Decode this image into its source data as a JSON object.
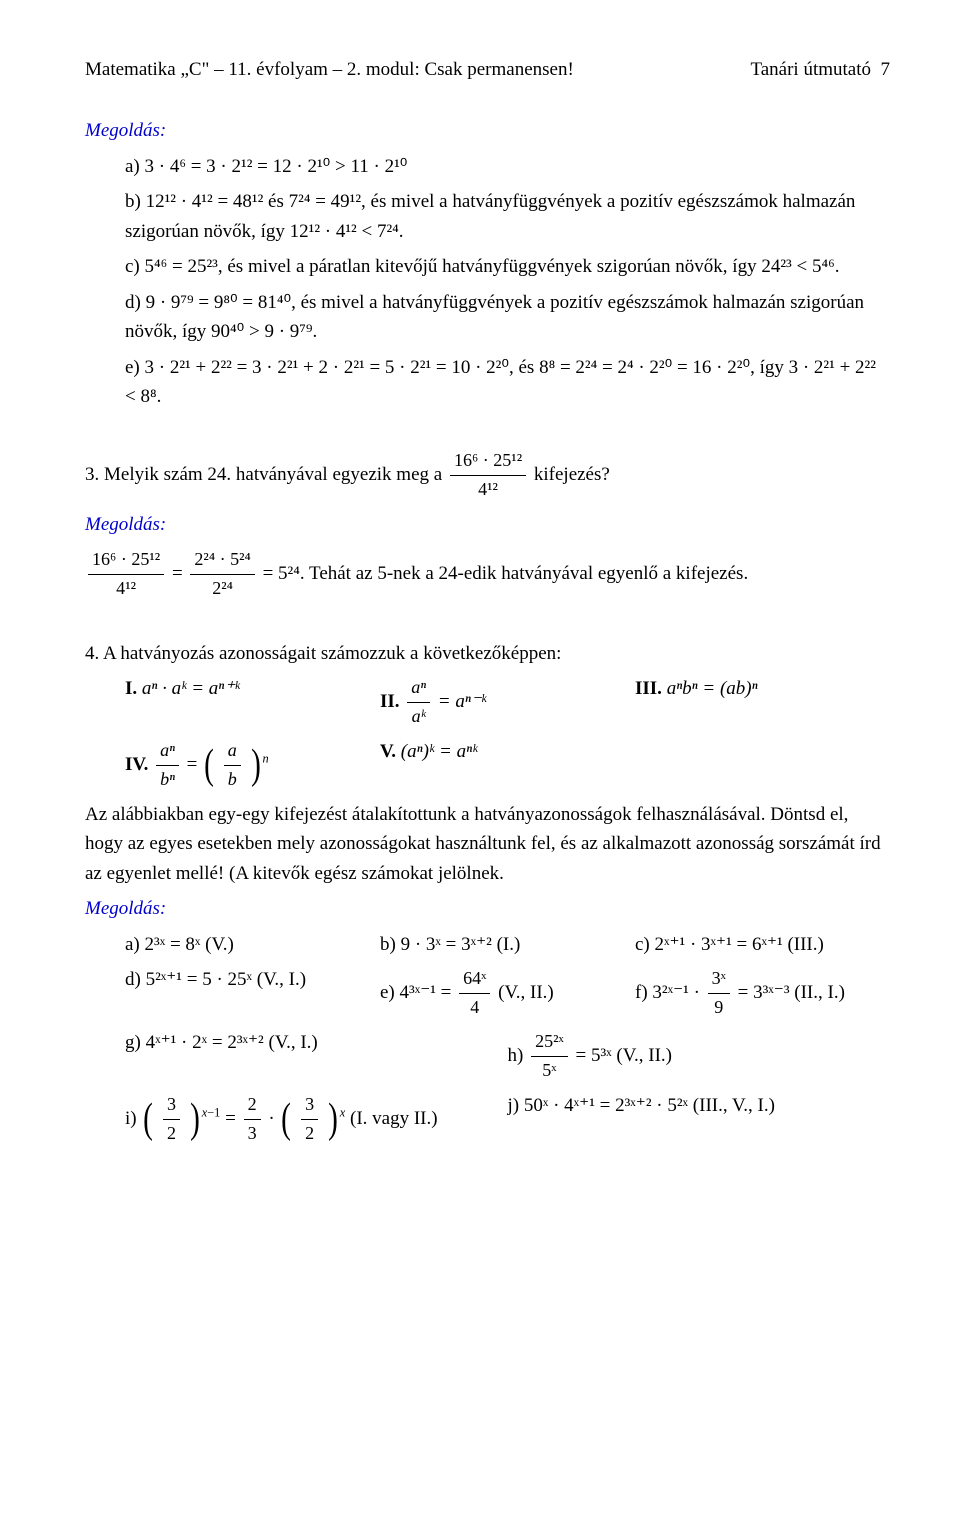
{
  "header": {
    "left": "Matematika „C\" – 11. évfolyam – 2. modul: Csak permanensen!",
    "right": "Tanári útmutató",
    "page": "7"
  },
  "sol_label": "Megoldás:",
  "q1": {
    "a": "a) 3 · 4⁶ = 3 · 2¹² = 12 · 2¹⁰ > 11 · 2¹⁰",
    "b": "b) 12¹² · 4¹² = 48¹² és 7²⁴ = 49¹², és mivel a hatványfüggvények a pozitív egészszámok halmazán szigorúan növők, így 12¹² · 4¹² < 7²⁴.",
    "c": "c) 5⁴⁶ = 25²³, és mivel a páratlan kitevőjű hatványfüggvények szigorúan növők, így 24²³ < 5⁴⁶.",
    "d": "d) 9 · 9⁷⁹ = 9⁸⁰ = 81⁴⁰, és mivel a hatványfüggvények a pozitív egészszámok halmazán szigorúan növők, így 90⁴⁰ > 9 · 9⁷⁹.",
    "e": "e) 3 · 2²¹ + 2²² = 3 · 2²¹ + 2 · 2²¹ = 5 · 2²¹ = 10 · 2²⁰, és 8⁸ = 2²⁴ = 2⁴ · 2²⁰ = 16 · 2²⁰, így 3 · 2²¹ + 2²² < 8⁸."
  },
  "q3": {
    "text_before": "3. Melyik szám 24. hatványával egyezik meg a ",
    "frac_num": "16⁶ · 25¹²",
    "frac_den": "4¹²",
    "text_after": " kifejezés?",
    "sol_num": "16⁶ · 25¹²",
    "sol_den": "4¹²",
    "sol_num2": "2²⁴ · 5²⁴",
    "sol_den2": "2²⁴",
    "sol_rest": " = 5²⁴. Tehát az 5-nek a 24-edik hatványával egyenlő a kifejezés."
  },
  "q4": {
    "title": "4. A hatványozás azonosságait számozzuk a következőképpen:",
    "I_l": "I. ",
    "I": "aⁿ · aᵏ = aⁿ⁺ᵏ",
    "II_l": "II. ",
    "III_l": "III. ",
    "III": "aⁿbⁿ = (ab)ⁿ",
    "IV_l": "IV. ",
    "V_l": "V. ",
    "V": "(aⁿ)ᵏ = aⁿᵏ",
    "para1": "Az alábbiakban egy-egy kifejezést átalakítottunk a hatványazonosságok felhasználásával. Döntsd el, hogy az egyes esetekben mely azonosságokat használtunk fel, és az alkalmazott azonosság sorszámát írd az egyenlet mellé! (A kitevők egész számokat jelölnek.",
    "a": "a) 2³ˣ = 8ˣ (V.)",
    "b": "b) 9 · 3ˣ = 3ˣ⁺² (I.)",
    "c": "c) 2ˣ⁺¹ · 3ˣ⁺¹ = 6ˣ⁺¹ (III.)",
    "d": "d) 5²ˣ⁺¹ = 5 · 25ˣ (V., I.)",
    "e_pre": "e) 4³ˣ⁻¹ = ",
    "e_num": "64ˣ",
    "e_den": "4",
    "e_post": " (V., II.)",
    "f_pre": "f) 3²ˣ⁻¹ · ",
    "f_num": "3ˣ",
    "f_den": "9",
    "f_post": " = 3³ˣ⁻³ (II., I.)",
    "g": "g) 4ˣ⁺¹ · 2ˣ = 2³ˣ⁺² (V., I.)",
    "h_pre": "h) ",
    "h_num": "25²ˣ",
    "h_den": "5ˣ",
    "h_post": " = 5³ˣ (V., II.)",
    "i_pre": "i) ",
    "i_mid": " = ",
    "i_mid2": " · ",
    "i_post": " (I. vagy II.)",
    "j": "j) 50ˣ · 4ˣ⁺¹ = 2³ˣ⁺² · 5²ˣ (III., V., I.)",
    "three_half": "3",
    "two": "2",
    "II_frac_num": "aⁿ",
    "II_frac_den": "aᵏ",
    "II_rhs": " = aⁿ⁻ᵏ",
    "IV_frac_num": "aⁿ",
    "IV_frac_den": "bⁿ",
    "IV_inner_num": "a",
    "IV_inner_den": "b",
    "IV_exp": "n"
  }
}
